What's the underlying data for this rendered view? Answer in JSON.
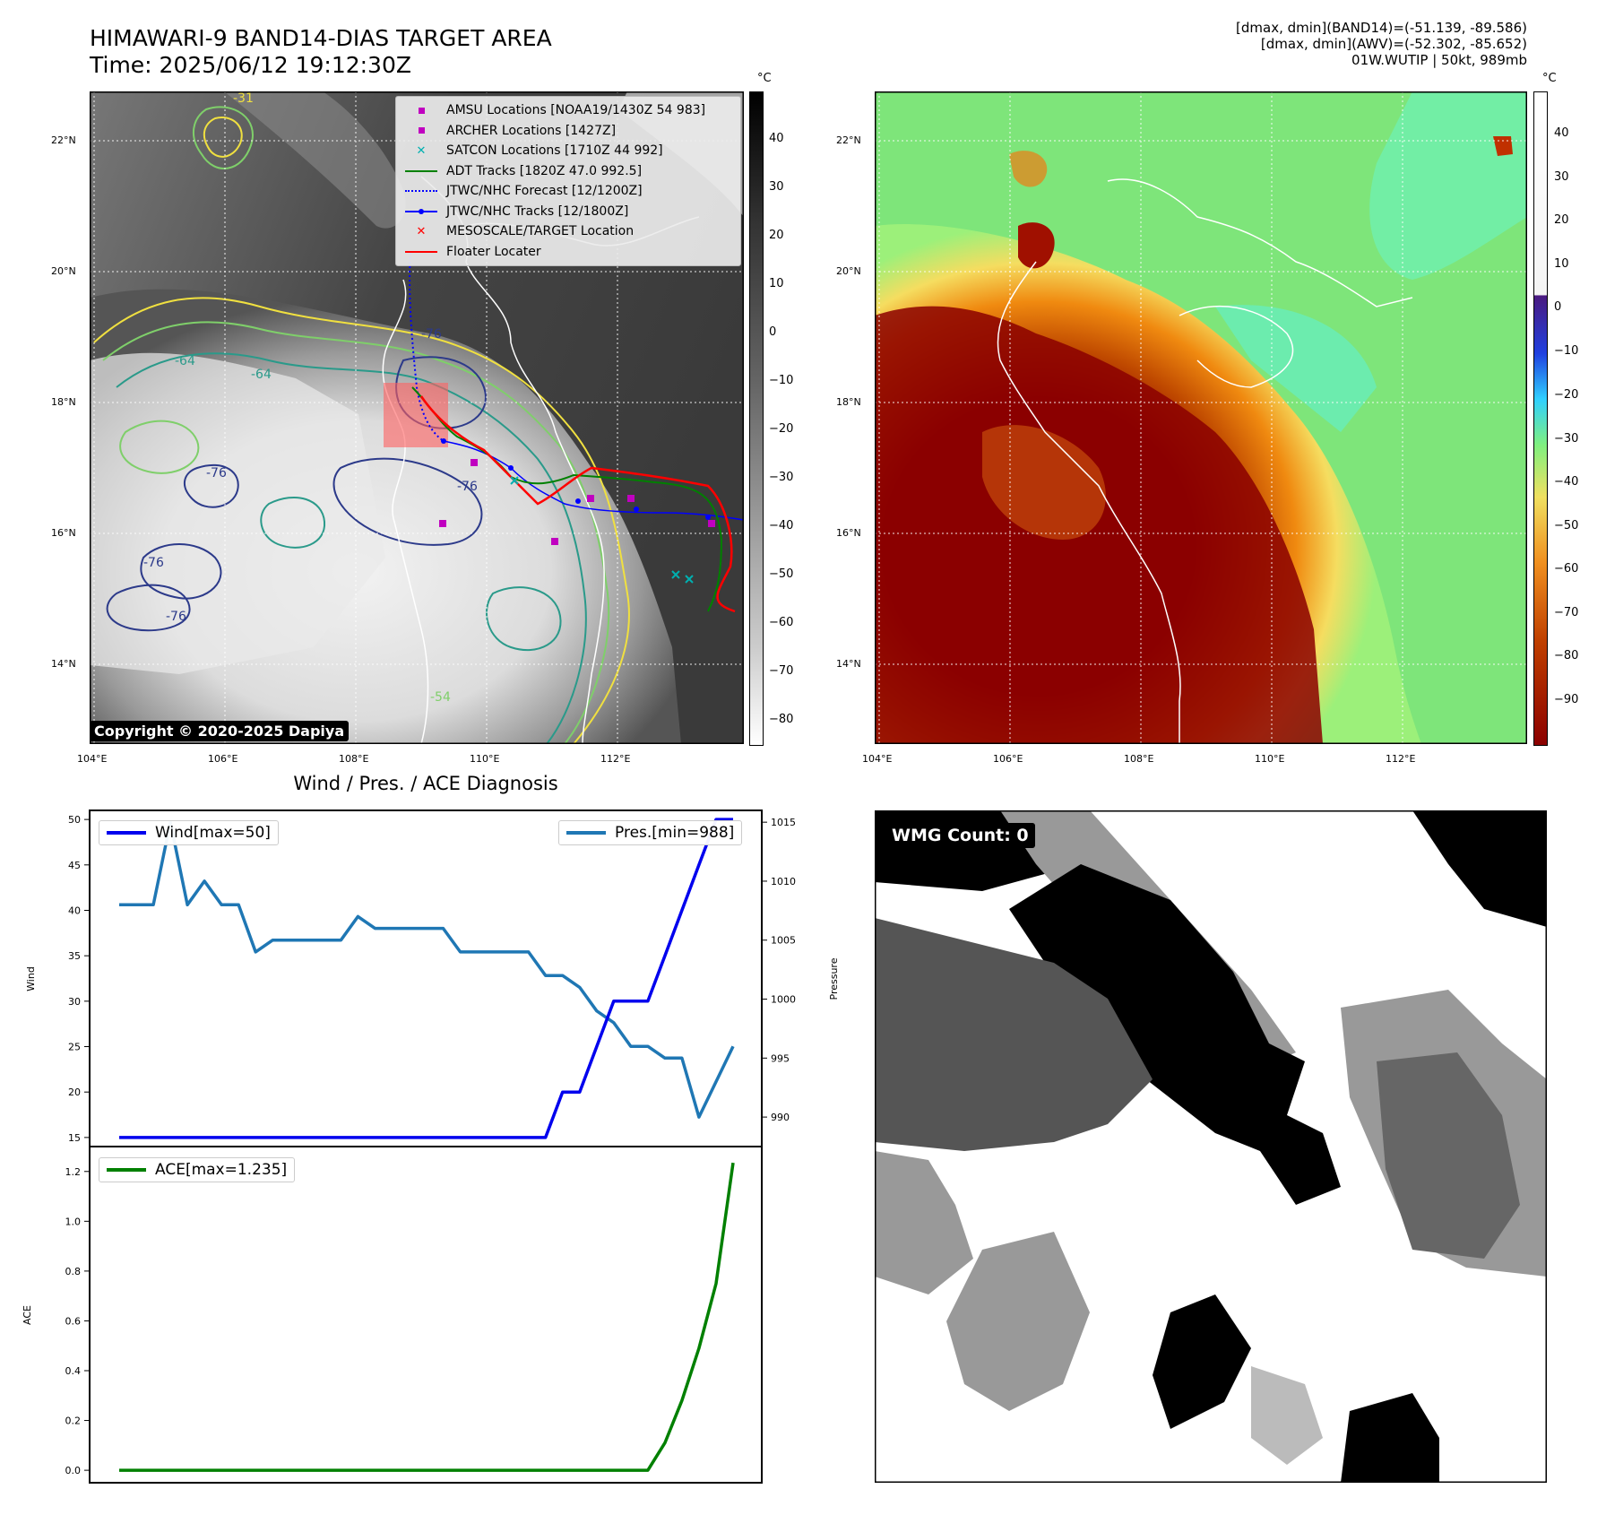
{
  "header": {
    "title_line1": "HIMAWARI-9 BAND14-DIAS TARGET AREA",
    "title_line2": "Time: 2025/06/12 19:12:30Z",
    "info_line1": "[dmax, dmin](BAND14)=(-51.139, -89.586)",
    "info_line2": "[dmax, dmin](AWV)=(-52.302, -85.652)",
    "info_line3": "01W.WUTIP | 50kt, 989mb"
  },
  "map_axes": {
    "lat_labels": [
      "22°N",
      "20°N",
      "18°N",
      "16°N",
      "14°N"
    ],
    "lon_labels": [
      "104°E",
      "106°E",
      "108°E",
      "110°E",
      "112°E"
    ]
  },
  "left_map": {
    "colorbar_unit": "°C",
    "colorbar_ticks": [
      "40",
      "30",
      "20",
      "10",
      "0",
      "−10",
      "−20",
      "−30",
      "−40",
      "−50",
      "−60",
      "−70",
      "−80"
    ],
    "contour_labels": [
      "-76",
      "-64",
      "-54",
      "-76",
      "-76",
      "-76",
      "-76",
      "-64",
      "-31"
    ],
    "legend": [
      {
        "label": "AMSU Locations [NOAA19/1430Z 54 983]",
        "symbol": "square",
        "color": "#c000c0"
      },
      {
        "label": "ARCHER Locations [1427Z]",
        "symbol": "square",
        "color": "#c000c0"
      },
      {
        "label": "SATCON Locations [1710Z 44 992]",
        "symbol": "x",
        "color": "#00b0b0"
      },
      {
        "label": "ADT Tracks [1820Z 47.0 992.5]",
        "symbol": "line",
        "color": "#008000"
      },
      {
        "label": "JTWC/NHC Forecast [12/1200Z]",
        "symbol": "dotted",
        "color": "#0000ff"
      },
      {
        "label": "JTWC/NHC Tracks [12/1800Z]",
        "symbol": "line-dot",
        "color": "#0000ff"
      },
      {
        "label": "MESOSCALE/TARGET Location",
        "symbol": "x",
        "color": "#ff0000"
      },
      {
        "label": "Floater Locater",
        "symbol": "line",
        "color": "#ff0000"
      }
    ],
    "copyright": "Copyright © 2020-2025 Dapiya"
  },
  "right_map": {
    "colorbar_unit": "°C",
    "colorbar_ticks": [
      "40",
      "30",
      "20",
      "10",
      "0",
      "−10",
      "−20",
      "−30",
      "−40",
      "−50",
      "−60",
      "−70",
      "−80",
      "−90"
    ]
  },
  "wmg": {
    "label": "WMG Count: 0"
  },
  "colors": {
    "wind": "#0000ee",
    "pressure": "#1f77b4",
    "ace": "#008000"
  },
  "chart_data": [
    {
      "type": "line",
      "title": "Wind / Pres. / ACE Diagnosis",
      "ylabel": "Wind",
      "ylabel_right": "Pressure",
      "ylim": [
        14,
        51
      ],
      "ylim_right": [
        987.5,
        1016
      ],
      "yticks": [
        15,
        20,
        25,
        30,
        35,
        40,
        45,
        50
      ],
      "yticks_right": [
        990,
        995,
        1000,
        1005,
        1010,
        1015
      ],
      "series": [
        {
          "name": "Wind[max=50]",
          "axis": "left",
          "x": [
            0,
            1,
            2,
            3,
            4,
            5,
            6,
            7,
            8,
            9,
            10,
            11,
            12,
            13,
            14,
            15,
            16,
            17,
            18,
            19,
            20,
            21,
            22,
            23,
            24,
            25,
            26,
            27,
            28,
            29,
            30,
            31,
            32,
            33,
            34,
            35,
            36
          ],
          "values": [
            15,
            15,
            15,
            15,
            15,
            15,
            15,
            15,
            15,
            15,
            15,
            15,
            15,
            15,
            15,
            15,
            15,
            15,
            15,
            15,
            15,
            15,
            15,
            15,
            15,
            15,
            20,
            20,
            25,
            30,
            30,
            30,
            35,
            40,
            45,
            50,
            50
          ]
        },
        {
          "name": "Pres.[min=988]",
          "axis": "right",
          "x": [
            0,
            1,
            2,
            3,
            4,
            5,
            6,
            7,
            8,
            9,
            10,
            11,
            12,
            13,
            14,
            15,
            16,
            17,
            18,
            19,
            20,
            21,
            22,
            23,
            24,
            25,
            26,
            27,
            28,
            29,
            30,
            31,
            32,
            33,
            34,
            35,
            36
          ],
          "values": [
            1008,
            1008,
            1008,
            1015,
            1008,
            1010,
            1008,
            1008,
            1004,
            1005,
            1005,
            1005,
            1005,
            1005,
            1007,
            1006,
            1006,
            1006,
            1006,
            1006,
            1004,
            1004,
            1004,
            1004,
            1004,
            1002,
            1002,
            1001,
            999,
            998,
            996,
            996,
            995,
            995,
            990,
            993,
            996
          ]
        }
      ]
    },
    {
      "type": "line",
      "ylabel": "ACE",
      "ylim": [
        -0.05,
        1.3
      ],
      "yticks": [
        0.0,
        0.2,
        0.4,
        0.6,
        0.8,
        1.0,
        1.2
      ],
      "series": [
        {
          "name": "ACE[max=1.235]",
          "x": [
            0,
            1,
            2,
            3,
            4,
            5,
            6,
            7,
            8,
            9,
            10,
            11,
            12,
            13,
            14,
            15,
            16,
            17,
            18,
            19,
            20,
            21,
            22,
            23,
            24,
            25,
            26,
            27,
            28,
            29,
            30,
            31,
            32,
            33,
            34,
            35,
            36
          ],
          "values": [
            0,
            0,
            0,
            0,
            0,
            0,
            0,
            0,
            0,
            0,
            0,
            0,
            0,
            0,
            0,
            0,
            0,
            0,
            0,
            0,
            0,
            0,
            0,
            0,
            0,
            0,
            0,
            0,
            0,
            0,
            0,
            0,
            0.11,
            0.28,
            0.49,
            0.75,
            1.235
          ]
        }
      ]
    }
  ]
}
